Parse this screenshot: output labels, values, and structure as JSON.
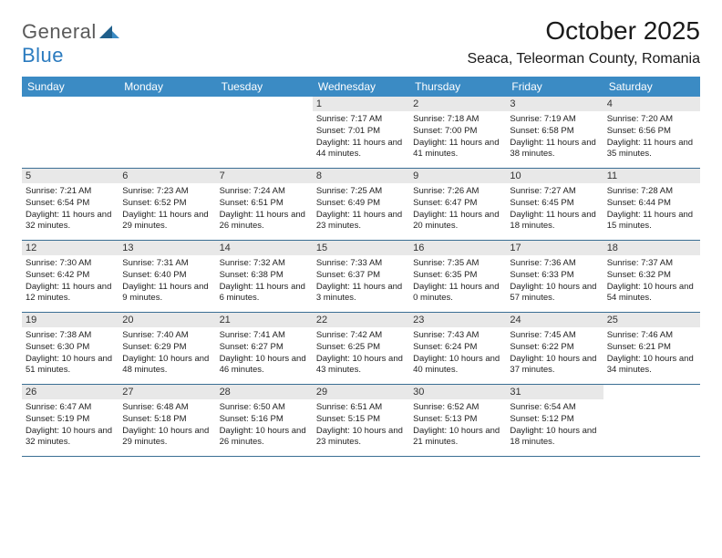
{
  "logo": {
    "general": "General",
    "blue": "Blue"
  },
  "title": "October 2025",
  "location": "Seaca, Teleorman County, Romania",
  "colors": {
    "header_bg": "#3b8bc4",
    "header_text": "#ffffff",
    "row_border": "#3b6f94",
    "daynum_bg": "#e8e8e8",
    "logo_gray": "#5a5a5a",
    "logo_blue": "#2b7bbf"
  },
  "day_headers": [
    "Sunday",
    "Monday",
    "Tuesday",
    "Wednesday",
    "Thursday",
    "Friday",
    "Saturday"
  ],
  "weeks": [
    [
      null,
      null,
      null,
      {
        "n": "1",
        "sr": "7:17 AM",
        "ss": "7:01 PM",
        "dl": "11 hours and 44 minutes."
      },
      {
        "n": "2",
        "sr": "7:18 AM",
        "ss": "7:00 PM",
        "dl": "11 hours and 41 minutes."
      },
      {
        "n": "3",
        "sr": "7:19 AM",
        "ss": "6:58 PM",
        "dl": "11 hours and 38 minutes."
      },
      {
        "n": "4",
        "sr": "7:20 AM",
        "ss": "6:56 PM",
        "dl": "11 hours and 35 minutes."
      }
    ],
    [
      {
        "n": "5",
        "sr": "7:21 AM",
        "ss": "6:54 PM",
        "dl": "11 hours and 32 minutes."
      },
      {
        "n": "6",
        "sr": "7:23 AM",
        "ss": "6:52 PM",
        "dl": "11 hours and 29 minutes."
      },
      {
        "n": "7",
        "sr": "7:24 AM",
        "ss": "6:51 PM",
        "dl": "11 hours and 26 minutes."
      },
      {
        "n": "8",
        "sr": "7:25 AM",
        "ss": "6:49 PM",
        "dl": "11 hours and 23 minutes."
      },
      {
        "n": "9",
        "sr": "7:26 AM",
        "ss": "6:47 PM",
        "dl": "11 hours and 20 minutes."
      },
      {
        "n": "10",
        "sr": "7:27 AM",
        "ss": "6:45 PM",
        "dl": "11 hours and 18 minutes."
      },
      {
        "n": "11",
        "sr": "7:28 AM",
        "ss": "6:44 PM",
        "dl": "11 hours and 15 minutes."
      }
    ],
    [
      {
        "n": "12",
        "sr": "7:30 AM",
        "ss": "6:42 PM",
        "dl": "11 hours and 12 minutes."
      },
      {
        "n": "13",
        "sr": "7:31 AM",
        "ss": "6:40 PM",
        "dl": "11 hours and 9 minutes."
      },
      {
        "n": "14",
        "sr": "7:32 AM",
        "ss": "6:38 PM",
        "dl": "11 hours and 6 minutes."
      },
      {
        "n": "15",
        "sr": "7:33 AM",
        "ss": "6:37 PM",
        "dl": "11 hours and 3 minutes."
      },
      {
        "n": "16",
        "sr": "7:35 AM",
        "ss": "6:35 PM",
        "dl": "11 hours and 0 minutes."
      },
      {
        "n": "17",
        "sr": "7:36 AM",
        "ss": "6:33 PM",
        "dl": "10 hours and 57 minutes."
      },
      {
        "n": "18",
        "sr": "7:37 AM",
        "ss": "6:32 PM",
        "dl": "10 hours and 54 minutes."
      }
    ],
    [
      {
        "n": "19",
        "sr": "7:38 AM",
        "ss": "6:30 PM",
        "dl": "10 hours and 51 minutes."
      },
      {
        "n": "20",
        "sr": "7:40 AM",
        "ss": "6:29 PM",
        "dl": "10 hours and 48 minutes."
      },
      {
        "n": "21",
        "sr": "7:41 AM",
        "ss": "6:27 PM",
        "dl": "10 hours and 46 minutes."
      },
      {
        "n": "22",
        "sr": "7:42 AM",
        "ss": "6:25 PM",
        "dl": "10 hours and 43 minutes."
      },
      {
        "n": "23",
        "sr": "7:43 AM",
        "ss": "6:24 PM",
        "dl": "10 hours and 40 minutes."
      },
      {
        "n": "24",
        "sr": "7:45 AM",
        "ss": "6:22 PM",
        "dl": "10 hours and 37 minutes."
      },
      {
        "n": "25",
        "sr": "7:46 AM",
        "ss": "6:21 PM",
        "dl": "10 hours and 34 minutes."
      }
    ],
    [
      {
        "n": "26",
        "sr": "6:47 AM",
        "ss": "5:19 PM",
        "dl": "10 hours and 32 minutes."
      },
      {
        "n": "27",
        "sr": "6:48 AM",
        "ss": "5:18 PM",
        "dl": "10 hours and 29 minutes."
      },
      {
        "n": "28",
        "sr": "6:50 AM",
        "ss": "5:16 PM",
        "dl": "10 hours and 26 minutes."
      },
      {
        "n": "29",
        "sr": "6:51 AM",
        "ss": "5:15 PM",
        "dl": "10 hours and 23 minutes."
      },
      {
        "n": "30",
        "sr": "6:52 AM",
        "ss": "5:13 PM",
        "dl": "10 hours and 21 minutes."
      },
      {
        "n": "31",
        "sr": "6:54 AM",
        "ss": "5:12 PM",
        "dl": "10 hours and 18 minutes."
      },
      null
    ]
  ],
  "labels": {
    "sunrise": "Sunrise:",
    "sunset": "Sunset:",
    "daylight": "Daylight:"
  }
}
